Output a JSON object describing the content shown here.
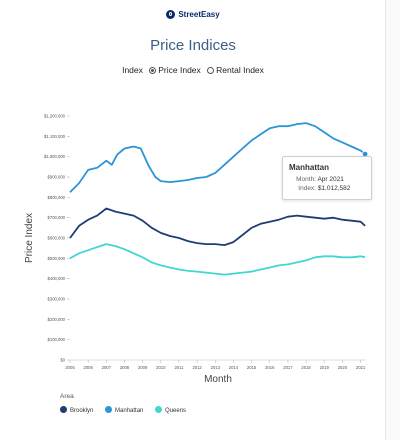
{
  "brand": {
    "name": "StreetEasy",
    "color": "#0a2a6b"
  },
  "title": "Price Indices",
  "index_toggle": {
    "label": "Index",
    "options": [
      "Price Index",
      "Rental Index"
    ],
    "selected": "Price Index"
  },
  "tooltip": {
    "title": "Manhattan",
    "month_label": "Month:",
    "month_value": "Apr 2021",
    "index_label": "Index:",
    "index_value": "$1,012,582"
  },
  "legend": {
    "title": "Area",
    "items": [
      {
        "name": "Brooklyn",
        "color": "#1f3d73"
      },
      {
        "name": "Manhattan",
        "color": "#2b95d6"
      },
      {
        "name": "Queens",
        "color": "#43d6d0"
      }
    ]
  },
  "chart_data": {
    "type": "line",
    "xlabel": "Month",
    "ylabel": "Price Index",
    "xlim": [
      2005,
      2021.3
    ],
    "ylim": [
      0,
      1200000
    ],
    "x_ticks": [
      2005,
      2006,
      2007,
      2008,
      2009,
      2010,
      2011,
      2012,
      2013,
      2014,
      2015,
      2016,
      2017,
      2018,
      2019,
      2020,
      2021
    ],
    "x_tick_labels": [
      "2005",
      "2006",
      "2007",
      "2008",
      "2009",
      "2010",
      "2011",
      "2012",
      "2013",
      "2014",
      "2015",
      "2016",
      "2017",
      "2018",
      "2019",
      "2020",
      "2021"
    ],
    "y_ticks": [
      0,
      100000,
      200000,
      300000,
      400000,
      500000,
      600000,
      700000,
      800000,
      900000,
      1000000,
      1100000,
      1200000
    ],
    "y_tick_labels": [
      "$0",
      "$100,000",
      "$200,000",
      "$300,000",
      "$400,000",
      "$500,000",
      "$600,000",
      "$700,000",
      "$800,000",
      "$900,000",
      "$1,000,000",
      "$1,100,000",
      "$1,200,000"
    ],
    "grid": false,
    "legend_position": "bottom-left",
    "highlight": {
      "series": "Manhattan",
      "x": 2021.25,
      "y": 1012582
    },
    "series": [
      {
        "name": "Manhattan",
        "color": "#2b95d6",
        "x": [
          2005,
          2005.5,
          2006,
          2006.5,
          2007,
          2007.3,
          2007.6,
          2008,
          2008.5,
          2008.9,
          2009.3,
          2009.7,
          2010,
          2010.5,
          2011,
          2011.5,
          2012,
          2012.5,
          2013,
          2013.5,
          2014,
          2014.5,
          2015,
          2015.5,
          2016,
          2016.5,
          2017,
          2017.5,
          2018,
          2018.5,
          2019,
          2019.5,
          2020,
          2020.5,
          2021,
          2021.25
        ],
        "y": [
          825000,
          870000,
          935000,
          945000,
          980000,
          960000,
          1010000,
          1040000,
          1050000,
          1040000,
          960000,
          900000,
          880000,
          875000,
          880000,
          885000,
          895000,
          900000,
          920000,
          960000,
          1000000,
          1040000,
          1080000,
          1110000,
          1140000,
          1150000,
          1150000,
          1160000,
          1165000,
          1150000,
          1120000,
          1090000,
          1070000,
          1050000,
          1030000,
          1012582
        ]
      },
      {
        "name": "Brooklyn",
        "color": "#1f3d73",
        "x": [
          2005,
          2005.5,
          2006,
          2006.5,
          2007,
          2007.5,
          2008,
          2008.5,
          2009,
          2009.5,
          2010,
          2010.5,
          2011,
          2011.5,
          2012,
          2012.5,
          2013,
          2013.5,
          2014,
          2014.5,
          2015,
          2015.5,
          2016,
          2016.5,
          2017,
          2017.5,
          2018,
          2018.5,
          2019,
          2019.5,
          2020,
          2020.5,
          2021,
          2021.25
        ],
        "y": [
          600000,
          660000,
          690000,
          710000,
          745000,
          730000,
          720000,
          710000,
          685000,
          650000,
          625000,
          610000,
          600000,
          585000,
          575000,
          570000,
          570000,
          565000,
          580000,
          615000,
          650000,
          670000,
          680000,
          690000,
          705000,
          710000,
          705000,
          700000,
          695000,
          700000,
          690000,
          685000,
          680000,
          660000
        ]
      },
      {
        "name": "Queens",
        "color": "#43d6d0",
        "x": [
          2005,
          2005.5,
          2006,
          2006.5,
          2007,
          2007.5,
          2008,
          2008.5,
          2009,
          2009.5,
          2010,
          2010.5,
          2011,
          2011.5,
          2012,
          2012.5,
          2013,
          2013.5,
          2014,
          2014.5,
          2015,
          2015.5,
          2016,
          2016.5,
          2017,
          2017.5,
          2018,
          2018.5,
          2019,
          2019.5,
          2020,
          2020.5,
          2021,
          2021.25
        ],
        "y": [
          500000,
          525000,
          540000,
          555000,
          570000,
          560000,
          545000,
          525000,
          505000,
          480000,
          465000,
          455000,
          445000,
          438000,
          435000,
          430000,
          425000,
          420000,
          425000,
          430000,
          435000,
          445000,
          455000,
          465000,
          470000,
          480000,
          490000,
          505000,
          510000,
          510000,
          505000,
          505000,
          510000,
          505000
        ]
      }
    ]
  }
}
